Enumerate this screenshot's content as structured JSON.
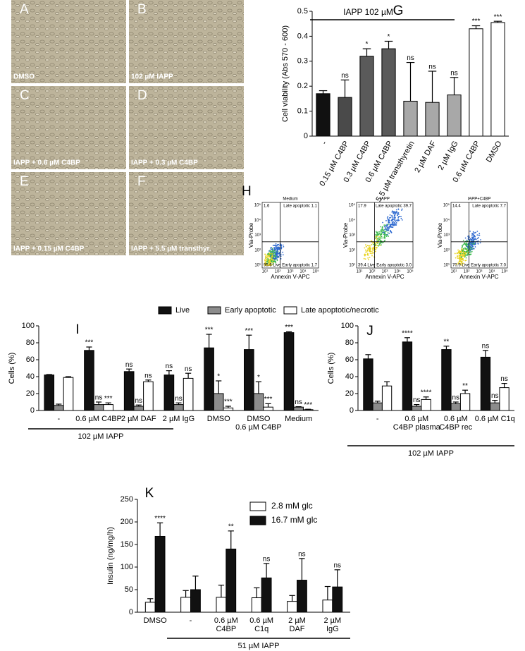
{
  "micrographs": [
    {
      "panel": "A",
      "caption": "DMSO"
    },
    {
      "panel": "B",
      "caption": "102 µM IAPP"
    },
    {
      "panel": "C",
      "caption": "IAPP + 0.6 µM C4BP"
    },
    {
      "panel": "D",
      "caption": "IAPP + 0.3 µM C4BP"
    },
    {
      "panel": "E",
      "caption": "IAPP + 0.15 µM C4BP"
    },
    {
      "panel": "F",
      "caption": "IAPP + 5.5 µM transthyr."
    }
  ],
  "flow_cytometry": {
    "panel": "H",
    "xlabel": "Annexin V-APC",
    "ylabel": "Via-Probe",
    "ticks": [
      "10¹",
      "10²",
      "10³",
      "10⁴",
      "10⁵"
    ],
    "plots": [
      {
        "title": "Medium",
        "upper_left": "1.6",
        "upper_right": "Late apoptotic 1.1",
        "lower_left": "95.6 Live",
        "lower_right": "Early apoptotic 1.7"
      },
      {
        "title": "IAPP",
        "upper_left": "17.9",
        "upper_right": "Late apoptotic 39.7",
        "lower_left": "39.4 Live",
        "lower_right": "Early apoptotic 3.0"
      },
      {
        "title": "IAPP+C4BP",
        "upper_left": "14.4",
        "upper_right": "Late apoptotic 7.7",
        "lower_left": "70.9 Live",
        "lower_right": "Early apoptotic 7.0"
      }
    ]
  },
  "chart_data": [
    {
      "type": "bar",
      "panel": "G",
      "annotation": "IAPP 102 µM",
      "ylabel": "Cell viability (Abs 570 - 600)",
      "categories": [
        "-",
        "0.15 µM C4BP",
        "0.3 µM C4BP",
        "0.6 µM C4BP",
        "5.5 µM transthyretin",
        "2 µM DAF",
        "2 µM IgG",
        "0.6 µM C4BP",
        "DMSO"
      ],
      "ylim": [
        0,
        0.5
      ],
      "yticks": [
        0,
        0.1,
        0.2,
        0.3,
        0.4,
        0.5
      ],
      "series": [
        {
          "colors": [
            "#111111",
            "#4a4a4a",
            "#5a5a5a",
            "#5a5a5a",
            "#a8a8a8",
            "#a8a8a8",
            "#a8a8a8",
            "#ffffff",
            "#ffffff"
          ],
          "values": [
            0.17,
            0.155,
            0.32,
            0.35,
            0.14,
            0.135,
            0.165,
            0.43,
            0.455
          ],
          "errors": [
            0.012,
            0.07,
            0.03,
            0.03,
            0.155,
            0.125,
            0.07,
            0.012,
            0.005
          ],
          "significance": [
            null,
            "ns",
            "*",
            "*",
            "ns",
            "ns",
            "ns",
            "***",
            "***"
          ]
        }
      ]
    },
    {
      "type": "bar",
      "panel": "I",
      "ylabel": "Cells (%)",
      "group_label": "102 µM IAPP",
      "categories": [
        "-",
        "0.6 µM C4BP",
        "2 µM DAF",
        "2 µM IgG",
        "DMSO",
        [
          "DMSO",
          "0.6 µM C4BP"
        ],
        "Medium"
      ],
      "ylim": [
        0,
        100
      ],
      "yticks": [
        0,
        20,
        40,
        60,
        80,
        100
      ],
      "series": [
        {
          "name": "Live",
          "color": "#111111",
          "values": [
            42,
            71,
            46,
            42,
            74,
            72,
            92
          ],
          "errors": [
            0.5,
            4,
            3,
            5,
            16,
            17,
            1
          ],
          "significance": [
            null,
            "***",
            "ns",
            "ns",
            "***",
            "***",
            "***"
          ]
        },
        {
          "name": "Early apoptotic",
          "color": "#8c8c8c",
          "values": [
            6,
            7,
            5,
            7,
            20,
            20,
            4
          ],
          "errors": [
            1.5,
            3,
            1.5,
            2,
            15,
            14,
            0.5
          ],
          "significance": [
            null,
            "ns",
            "ns",
            "ns",
            "*",
            "*",
            "ns"
          ]
        },
        {
          "name": "Late apoptotic/necrotic",
          "color": "#ffffff",
          "values": [
            39,
            7,
            34,
            38,
            3,
            4,
            1
          ],
          "errors": [
            1,
            2,
            2,
            6,
            2,
            4,
            0.5
          ],
          "significance": [
            null,
            "***",
            "ns",
            "ns",
            "***",
            "***",
            "***"
          ]
        }
      ]
    },
    {
      "type": "bar",
      "panel": "J",
      "ylabel": "Cells (%)",
      "group_label": "102 µM IAPP",
      "categories": [
        "-",
        [
          "0.6 µM",
          "C4BP plasma"
        ],
        [
          "0.6 µM",
          "C4BP rec"
        ],
        "0.6 µM C1q"
      ],
      "ylim": [
        0,
        100
      ],
      "yticks": [
        0,
        20,
        40,
        60,
        80,
        100
      ],
      "series": [
        {
          "color": "#111111",
          "values": [
            61,
            81,
            72,
            63
          ],
          "errors": [
            5,
            5,
            4,
            8
          ],
          "significance": [
            null,
            "****",
            "**",
            "ns"
          ]
        },
        {
          "color": "#8c8c8c",
          "values": [
            9,
            5,
            8,
            9
          ],
          "errors": [
            2,
            2,
            2,
            3
          ],
          "significance": [
            null,
            "ns",
            "ns",
            "ns"
          ]
        },
        {
          "color": "#ffffff",
          "values": [
            29,
            13,
            20,
            27
          ],
          "errors": [
            5,
            3,
            4,
            5
          ],
          "significance": [
            null,
            "****",
            "**",
            "ns"
          ]
        }
      ]
    },
    {
      "type": "bar",
      "panel": "K",
      "ylabel": "Insulin (ng/mg/h)",
      "group_label": "51 µM IAPP",
      "categories": [
        "DMSO",
        "-",
        [
          "0.6 µM",
          "C4BP"
        ],
        [
          "0.6 µM",
          "C1q"
        ],
        [
          "2 µM",
          "DAF"
        ],
        [
          "2 µM",
          "IgG"
        ]
      ],
      "ylim": [
        0,
        250
      ],
      "yticks": [
        0,
        50,
        100,
        150,
        200,
        250
      ],
      "series": [
        {
          "name": "2.8 mM glc",
          "color": "#ffffff",
          "values": [
            22,
            33,
            33,
            32,
            24,
            27
          ],
          "errors": [
            8,
            15,
            27,
            22,
            13,
            30
          ]
        },
        {
          "name": "16.7 mM glc",
          "color": "#111111",
          "values": [
            168,
            50,
            140,
            76,
            71,
            56
          ],
          "errors": [
            30,
            30,
            40,
            32,
            48,
            38
          ],
          "significance": [
            "****",
            null,
            "**",
            "ns",
            "ns",
            "ns"
          ]
        }
      ]
    }
  ]
}
